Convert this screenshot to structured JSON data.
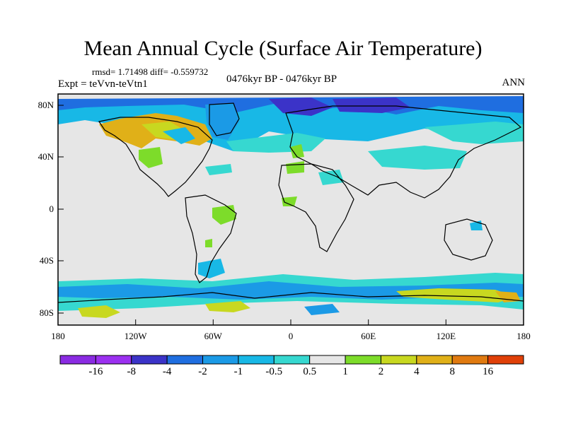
{
  "title": "Mean Annual Cycle (Surface Air Temperature)",
  "stats": "rmsd= 1.71498 diff= -0.559732",
  "experiment": "Expt = teVvn-teVtn1",
  "period": "0476kyr BP - 0476kyr BP",
  "season": "ANN",
  "map": {
    "lon_ticks": [
      "180",
      "120W",
      "60W",
      "0",
      "60E",
      "120E",
      "180"
    ],
    "lat_ticks": [
      "80N",
      "40N",
      "0",
      "40S",
      "80S"
    ],
    "ocean_color": "#e6e6e6"
  },
  "colorbar": {
    "labels": [
      "-16",
      "-8",
      "-4",
      "-2",
      "-1",
      "-0.5",
      "0.5",
      "1",
      "2",
      "4",
      "8",
      "16"
    ],
    "colors": [
      "#9b30f0",
      "#3b33c8",
      "#1f6ee0",
      "#1b9ae6",
      "#18b8e6",
      "#36d8d0",
      "#e6e6e6",
      "#7ddc2a",
      "#c8d820",
      "#e0b018",
      "#e07a10",
      "#e04008"
    ]
  }
}
